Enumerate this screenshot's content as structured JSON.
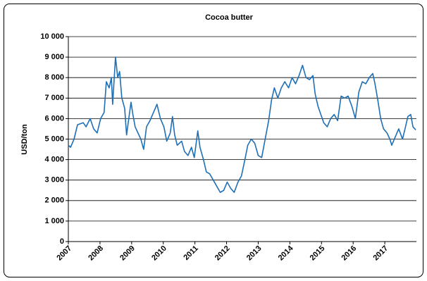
{
  "chart_data": {
    "type": "line",
    "title": "Cocoa butter",
    "y_label": "USD/ton",
    "x": [
      2007.0,
      2007.07,
      2007.18,
      2007.29,
      2007.47,
      2007.56,
      2007.69,
      2007.8,
      2007.91,
      2008.02,
      2008.13,
      2008.2,
      2008.29,
      2008.36,
      2008.4,
      2008.49,
      2008.56,
      2008.62,
      2008.69,
      2008.78,
      2008.84,
      2008.91,
      2008.98,
      2009.04,
      2009.11,
      2009.2,
      2009.29,
      2009.38,
      2009.47,
      2009.58,
      2009.69,
      2009.8,
      2009.91,
      2010.02,
      2010.11,
      2010.22,
      2010.29,
      2010.36,
      2010.44,
      2010.58,
      2010.67,
      2010.78,
      2010.89,
      2010.98,
      2011.09,
      2011.16,
      2011.27,
      2011.36,
      2011.47,
      2011.58,
      2011.69,
      2011.8,
      2011.91,
      2012.02,
      2012.13,
      2012.24,
      2012.36,
      2012.47,
      2012.58,
      2012.67,
      2012.78,
      2012.89,
      2013.0,
      2013.11,
      2013.22,
      2013.33,
      2013.42,
      2013.51,
      2013.62,
      2013.73,
      2013.84,
      2013.96,
      2014.07,
      2014.18,
      2014.29,
      2014.4,
      2014.51,
      2014.62,
      2014.73,
      2014.8,
      2014.89,
      2014.98,
      2015.07,
      2015.18,
      2015.29,
      2015.4,
      2015.51,
      2015.62,
      2015.73,
      2015.84,
      2015.96,
      2016.07,
      2016.18,
      2016.29,
      2016.4,
      2016.51,
      2016.62,
      2016.69,
      2016.78,
      2016.87,
      2016.96,
      2017.07,
      2017.16,
      2017.22,
      2017.33,
      2017.44,
      2017.56,
      2017.64,
      2017.73,
      2017.82,
      2017.89,
      2017.98
    ],
    "series": [
      {
        "name": "Cocoa butter",
        "color": "#1f6fb6",
        "values": [
          4700,
          4600,
          5000,
          5700,
          5800,
          5600,
          6000,
          5500,
          5300,
          6000,
          6300,
          7800,
          7500,
          8000,
          6700,
          9000,
          8000,
          8300,
          7000,
          6500,
          5200,
          6000,
          6800,
          6200,
          5600,
          5300,
          5000,
          4500,
          5600,
          5900,
          6300,
          6700,
          6000,
          5600,
          4900,
          5300,
          6100,
          5200,
          4700,
          4900,
          4400,
          4200,
          4600,
          4100,
          5400,
          4600,
          4000,
          3400,
          3300,
          3000,
          2700,
          2400,
          2500,
          2900,
          2600,
          2400,
          2900,
          3200,
          4000,
          4700,
          5000,
          4800,
          4200,
          4100,
          5000,
          5900,
          6900,
          7500,
          7000,
          7500,
          7800,
          7500,
          8000,
          7700,
          8100,
          8600,
          8000,
          7900,
          8100,
          7200,
          6600,
          6200,
          5800,
          5600,
          6000,
          6200,
          5900,
          7100,
          7000,
          7100,
          6600,
          6000,
          7300,
          7800,
          7700,
          8000,
          8200,
          7700,
          6900,
          6000,
          5500,
          5300,
          5000,
          4700,
          5100,
          5500,
          5000,
          5500,
          6100,
          6200,
          5600,
          5450
        ]
      }
    ],
    "xlim": [
      2007,
      2018
    ],
    "xticks": [
      2007,
      2008,
      2009,
      2010,
      2011,
      2012,
      2013,
      2014,
      2015,
      2016,
      2017
    ],
    "ylim": [
      0,
      10000
    ],
    "yticks": [
      0,
      {
        "value": 1000,
        "label": "1 000"
      },
      {
        "value": 2000,
        "label": "2 000"
      },
      {
        "value": 3000,
        "label": "3 000"
      },
      {
        "value": 4000,
        "label": "4 000"
      },
      {
        "value": 5000,
        "label": "5 000"
      },
      {
        "value": 6000,
        "label": "6 000"
      },
      {
        "value": 7000,
        "label": "7 000"
      },
      {
        "value": 8000,
        "label": "8 000"
      },
      {
        "value": 9000,
        "label": "9 000"
      },
      {
        "value": 10000,
        "label": "10 000"
      }
    ],
    "grid": true
  }
}
